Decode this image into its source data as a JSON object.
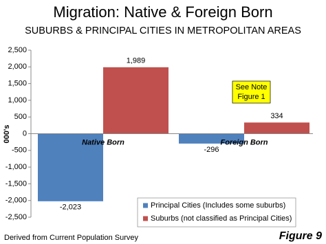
{
  "chart_data": {
    "type": "bar",
    "title": "Migration: Native & Foreign Born",
    "subtitle": "SUBURBS & PRINCIPAL CITIES IN METROPOLITAN AREAS",
    "y_label": "000's",
    "categories": [
      "Native Born",
      "Foreign Born"
    ],
    "series": [
      {
        "name": "Principal Cities (Includes some suburbs)",
        "color": "#4f81bd",
        "values": [
          -2023,
          -296
        ],
        "value_labels": [
          "-2,023",
          "-296"
        ]
      },
      {
        "name": "Suburbs (not classified as Principal Cities)",
        "color": "#c0504d",
        "values": [
          1989,
          334
        ],
        "value_labels": [
          "1,989",
          "334"
        ]
      }
    ],
    "ylim": [
      -2500,
      2500
    ],
    "yticks": [
      {
        "value": -2500,
        "label": "-2,500"
      },
      {
        "value": -2000,
        "label": "-2,000"
      },
      {
        "value": -1500,
        "label": "-1,500"
      },
      {
        "value": -1000,
        "label": "-1,000"
      },
      -500,
      0,
      500,
      {
        "value": 1000,
        "label": "1,000"
      },
      {
        "value": 1500,
        "label": "1,500"
      },
      {
        "value": 2000,
        "label": "2,000"
      },
      {
        "value": 2500,
        "label": "2,500"
      }
    ],
    "note": "See Note Figure 1",
    "source": "Derived from Current Population Survey",
    "figure_label": "Figure 9"
  }
}
